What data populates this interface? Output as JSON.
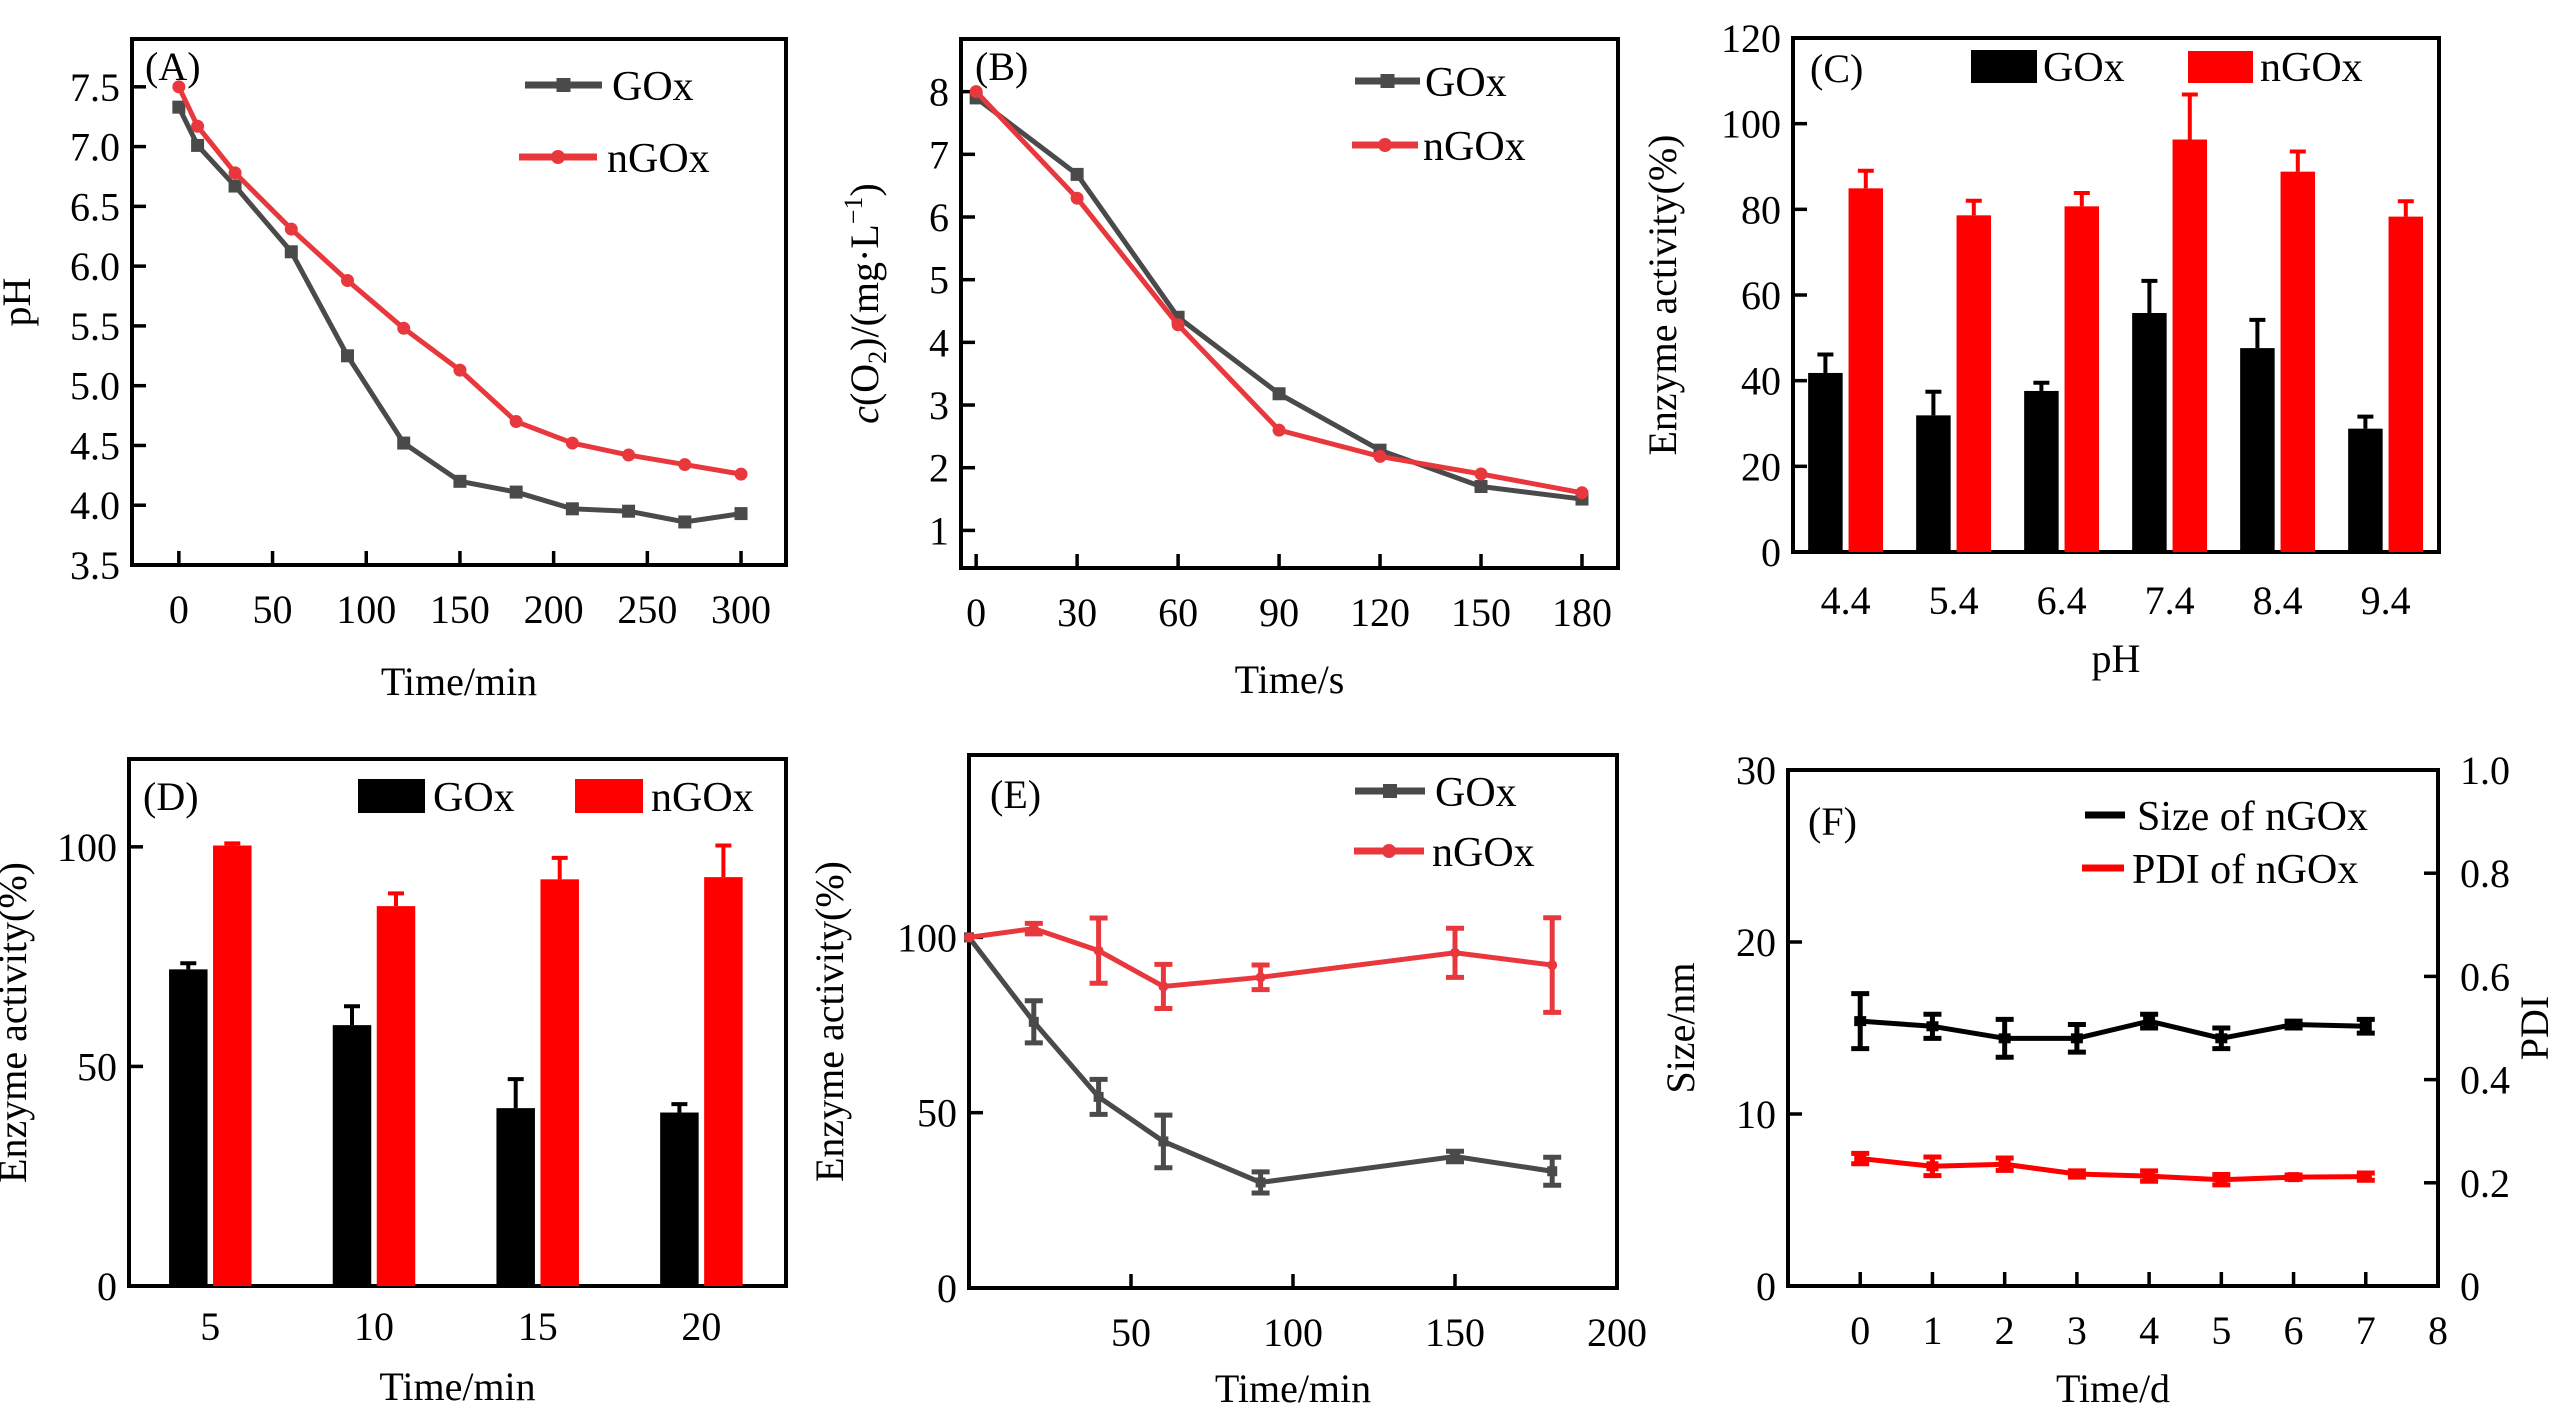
{
  "figure": {
    "panels": [
      "(A)",
      "(B)",
      "(C)",
      "(D)",
      "(E)",
      "(F)"
    ]
  },
  "colors": {
    "gox_line": "#4a4a4a",
    "ngox_line": "#e8383d",
    "gox_bar": "#000000",
    "ngox_bar": "#ff0000",
    "size_line": "#000000",
    "pdi_line": "#ff0000"
  },
  "chart_data": [
    {
      "id": "A",
      "panel_label": "(A)",
      "type": "line",
      "title": "",
      "xlabel": "Time/min",
      "ylabel": "pH",
      "xlim": [
        -25,
        324
      ],
      "ylim": [
        3.5,
        7.9
      ],
      "xticks": [
        0,
        50,
        100,
        150,
        200,
        250,
        300
      ],
      "yticks": [
        3.5,
        4.0,
        4.5,
        5.0,
        5.5,
        6.0,
        6.5,
        7.0,
        7.5
      ],
      "ytick_labels": [
        "3.5",
        "4.0",
        "4.5",
        "5.0",
        "5.5",
        "6.0",
        "6.5",
        "7.0",
        "7.5"
      ],
      "grid": false,
      "legend_position": "top-right",
      "x": [
        0,
        10,
        30,
        60,
        90,
        120,
        150,
        180,
        210,
        240,
        270,
        300
      ],
      "series": [
        {
          "name": "GOx",
          "marker": "square",
          "values": [
            7.33,
            7.01,
            6.67,
            6.12,
            5.25,
            4.52,
            4.2,
            4.11,
            3.97,
            3.95,
            3.86,
            3.93
          ]
        },
        {
          "name": "nGOx",
          "marker": "circle",
          "values": [
            7.5,
            7.17,
            6.78,
            6.31,
            5.88,
            5.48,
            5.13,
            4.7,
            4.52,
            4.42,
            4.34,
            4.26
          ]
        }
      ]
    },
    {
      "id": "B",
      "panel_label": "(B)",
      "type": "line",
      "title": "",
      "xlabel": "Time/s",
      "ylabel_parts": {
        "italic": "c",
        "main": "(O",
        "sub": "2",
        "mid": ")/(mg·L",
        "sup": "−1",
        "end": ")"
      },
      "ylabel": "c(O2)/(mg·L−1)",
      "xlim": [
        -4.5,
        190.7
      ],
      "ylim": [
        0.4,
        8.84
      ],
      "xticks": [
        0,
        30,
        60,
        90,
        120,
        150,
        180
      ],
      "yticks": [
        1,
        2,
        3,
        4,
        5,
        6,
        7,
        8
      ],
      "grid": false,
      "legend_position": "top-right",
      "x": [
        0,
        30,
        60,
        90,
        120,
        150,
        180
      ],
      "series": [
        {
          "name": "GOx",
          "marker": "square",
          "values": [
            7.9,
            6.68,
            4.4,
            3.18,
            2.28,
            1.7,
            1.5
          ]
        },
        {
          "name": "nGOx",
          "marker": "circle",
          "values": [
            8.0,
            6.3,
            4.28,
            2.6,
            2.18,
            1.9,
            1.6
          ]
        }
      ]
    },
    {
      "id": "C",
      "panel_label": "(C)",
      "type": "bar",
      "title": "",
      "xlabel": "pH",
      "ylabel": "Enzyme activity(%)",
      "ylim": [
        0,
        120
      ],
      "yticks": [
        0,
        20,
        40,
        60,
        80,
        100,
        120
      ],
      "grid": false,
      "legend_position": "top",
      "categories": [
        "4.4",
        "5.4",
        "6.4",
        "7.4",
        "8.4",
        "9.4"
      ],
      "series": [
        {
          "name": "GOx",
          "values": [
            41.8,
            31.9,
            37.6,
            55.8,
            47.6,
            28.8
          ],
          "error": [
            4.3,
            5.5,
            1.9,
            7.5,
            6.6,
            2.8
          ]
        },
        {
          "name": "nGOx",
          "values": [
            84.9,
            78.6,
            80.7,
            96.3,
            88.8,
            78.3
          ],
          "error": [
            4.1,
            3.4,
            3.1,
            10.5,
            4.7,
            3.6
          ]
        }
      ]
    },
    {
      "id": "D",
      "panel_label": "(D)",
      "type": "bar",
      "title": "",
      "xlabel": "Time/min",
      "ylabel": "Enzyme activity(%)",
      "ylim": [
        0,
        120
      ],
      "yticks": [
        0,
        50,
        100
      ],
      "grid": false,
      "legend_position": "top",
      "categories": [
        "5",
        "10",
        "15",
        "20"
      ],
      "series": [
        {
          "name": "GOx",
          "values": [
            72.1,
            59.4,
            40.5,
            39.5
          ],
          "error": [
            1.4,
            4.3,
            6.6,
            1.9
          ]
        },
        {
          "name": "nGOx",
          "values": [
            100.3,
            86.5,
            92.6,
            93.1
          ],
          "error": [
            0.5,
            2.9,
            4.9,
            7.2
          ]
        }
      ]
    },
    {
      "id": "E",
      "panel_label": "(E)",
      "type": "line",
      "title": "",
      "xlabel": "Time/min",
      "ylabel": "Enzyme activity(%)",
      "xlim": [
        0,
        200
      ],
      "ylim": [
        0,
        152
      ],
      "xticks": [
        50,
        100,
        150,
        200
      ],
      "yticks": [
        0,
        50,
        100
      ],
      "grid": false,
      "legend_position": "top-right",
      "x": [
        0,
        20,
        40,
        60,
        90,
        150,
        180
      ],
      "series": [
        {
          "name": "GOx",
          "marker": "square",
          "values": [
            100,
            75.9,
            54.5,
            41.8,
            30.1,
            37.5,
            33.3
          ],
          "error": [
            0,
            6.0,
            5.0,
            7.5,
            3.0,
            1.5,
            4.0
          ]
        },
        {
          "name": "nGOx",
          "marker": "circle",
          "values": [
            100,
            102.5,
            96.2,
            86.0,
            88.6,
            95.6,
            92.1
          ],
          "error": [
            0,
            1.5,
            9.3,
            6.3,
            3.5,
            7.0,
            13.5
          ]
        }
      ]
    },
    {
      "id": "F",
      "panel_label": "(F)",
      "type": "line",
      "title": "",
      "xlabel": "Time/d",
      "ylabel": "Size/nm",
      "ylabel_right": "PDI",
      "xlim": [
        -1,
        8
      ],
      "ylim": [
        0,
        30
      ],
      "ylim_right": [
        0,
        1.0
      ],
      "xticks": [
        0,
        1,
        2,
        3,
        4,
        5,
        6,
        7,
        8
      ],
      "yticks": [
        0,
        10,
        20,
        30
      ],
      "yticks_right": [
        0,
        0.2,
        0.4,
        0.6,
        0.8,
        1.0
      ],
      "ytick_labels_right": [
        "0",
        "0.2",
        "0.4",
        "0.6",
        "0.8",
        "1.0"
      ],
      "grid": false,
      "legend_position": "top-right",
      "x": [
        0,
        1,
        2,
        3,
        4,
        5,
        6,
        7
      ],
      "series": [
        {
          "name": "Size of nGOx",
          "axis": "left",
          "values": [
            15.4,
            15.1,
            14.4,
            14.4,
            15.4,
            14.4,
            15.2,
            15.1
          ],
          "error": [
            1.6,
            0.7,
            1.1,
            0.8,
            0.4,
            0.6,
            0.2,
            0.4
          ]
        },
        {
          "name": "PDI of nGOx",
          "axis": "right",
          "values": [
            0.247,
            0.232,
            0.236,
            0.217,
            0.213,
            0.206,
            0.211,
            0.212
          ],
          "error": [
            0.01,
            0.018,
            0.012,
            0.006,
            0.01,
            0.01,
            0.004,
            0.007
          ]
        }
      ]
    }
  ]
}
